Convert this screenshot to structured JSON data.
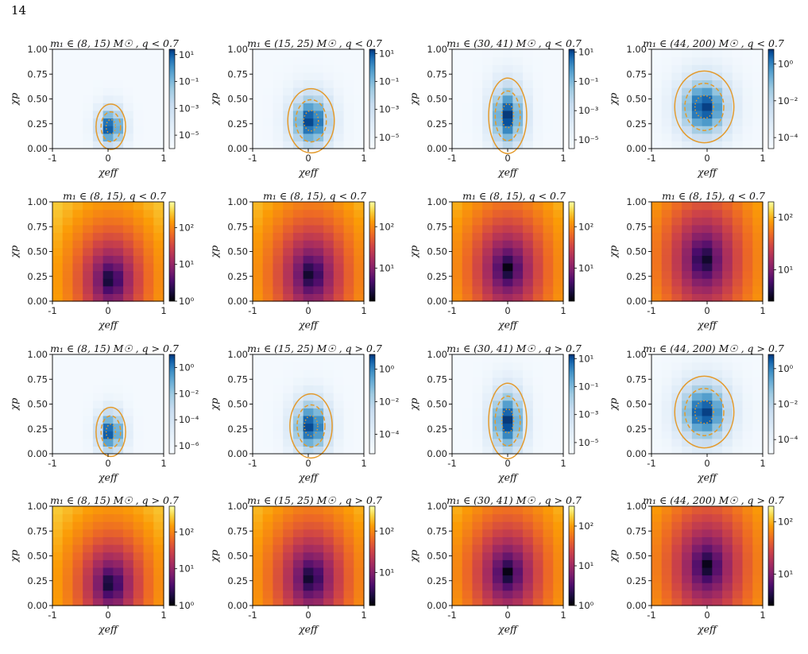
{
  "page": {
    "number": "14"
  },
  "colors": {
    "contour": "#e39a2c",
    "blues_low": "#f7fbff",
    "blues_high": "#08306b",
    "inferno_low": "#000004",
    "inferno_high": "#fcffa4"
  },
  "chart_data": [
    {
      "type": "heatmap",
      "row": 0,
      "col": 0,
      "title": "m₁ ∈ (8, 15) M☉ , q < 0.7",
      "xlabel": "χeff",
      "ylabel": "χp",
      "x_ticks": [
        "-1",
        "0",
        "1"
      ],
      "y_ticks": [
        "0.00",
        "0.25",
        "0.50",
        "0.75",
        "1.00"
      ],
      "xlim": [
        -1,
        1
      ],
      "ylim": [
        0,
        1
      ],
      "colormap": "Blues",
      "color_scale": "log",
      "colorbar_ticks": [
        "10¹",
        "10⁻¹",
        "10⁻³",
        "10⁻⁵"
      ],
      "colorbar_log_range": [
        -6,
        1.4
      ],
      "peak": {
        "x": 0.05,
        "y": 0.22
      },
      "spread": {
        "sx": 0.14,
        "sy": 0.12
      },
      "contours": true
    },
    {
      "type": "heatmap",
      "row": 0,
      "col": 1,
      "title": "m₁ ∈ (15, 25) M☉ , q < 0.7",
      "xlabel": "χeff",
      "ylabel": "χp",
      "x_ticks": [
        "-1",
        "0",
        "1"
      ],
      "y_ticks": [
        "0.00",
        "0.25",
        "0.50",
        "0.75",
        "1.00"
      ],
      "xlim": [
        -1,
        1
      ],
      "ylim": [
        0,
        1
      ],
      "colormap": "Blues",
      "color_scale": "log",
      "colorbar_ticks": [
        "10¹",
        "10⁻¹",
        "10⁻³",
        "10⁻⁵"
      ],
      "colorbar_log_range": [
        -5.8,
        1.3
      ],
      "peak": {
        "x": 0.05,
        "y": 0.28
      },
      "spread": {
        "sx": 0.22,
        "sy": 0.17
      },
      "contours": true
    },
    {
      "type": "heatmap",
      "row": 0,
      "col": 2,
      "title": "m₁ ∈ (30, 41) M☉ , q < 0.7",
      "xlabel": "χeff",
      "ylabel": "χp",
      "x_ticks": [
        "-1",
        "0",
        "1"
      ],
      "y_ticks": [
        "0.00",
        "0.25",
        "0.50",
        "0.75",
        "1.00"
      ],
      "xlim": [
        -1,
        1
      ],
      "ylim": [
        0,
        1
      ],
      "colormap": "Blues",
      "color_scale": "log",
      "colorbar_ticks": [
        "10¹",
        "10⁻¹",
        "10⁻³",
        "10⁻⁵"
      ],
      "colorbar_log_range": [
        -5.6,
        1.2
      ],
      "peak": {
        "x": 0.0,
        "y": 0.33
      },
      "spread": {
        "sx": 0.18,
        "sy": 0.2
      },
      "contours": true
    },
    {
      "type": "heatmap",
      "row": 0,
      "col": 3,
      "title": "m₁ ∈ (44, 200) M☉ , q < 0.7",
      "xlabel": "χeff",
      "ylabel": "χp",
      "x_ticks": [
        "-1",
        "0",
        "1"
      ],
      "y_ticks": [
        "0.00",
        "0.25",
        "0.50",
        "0.75",
        "1.00"
      ],
      "xlim": [
        -1,
        1
      ],
      "ylim": [
        0,
        1
      ],
      "colormap": "Blues",
      "color_scale": "log",
      "colorbar_ticks": [
        "10⁰",
        "10⁻²",
        "10⁻⁴"
      ],
      "colorbar_log_range": [
        -4.6,
        0.8
      ],
      "peak": {
        "x": -0.05,
        "y": 0.42
      },
      "spread": {
        "sx": 0.28,
        "sy": 0.19
      },
      "contours": true
    },
    {
      "type": "heatmap",
      "row": 1,
      "col": 0,
      "title": "m₁ ∈ (8, 15), q < 0.7",
      "xlabel": "χeff",
      "ylabel": "χp",
      "x_ticks": [
        "-1",
        "0",
        "1"
      ],
      "y_ticks": [
        "0.00",
        "0.25",
        "0.50",
        "0.75",
        "1.00"
      ],
      "xlim": [
        -1,
        1
      ],
      "ylim": [
        0,
        1
      ],
      "colormap": "inferno",
      "color_scale": "log",
      "colorbar_ticks": [
        "10²",
        "10¹",
        "10⁰"
      ],
      "colorbar_log_range": [
        0,
        2.7
      ],
      "peak": {
        "x": 0.05,
        "y": 0.22
      },
      "spread": {
        "sx": 0.55,
        "sy": 0.45
      },
      "contours": false
    },
    {
      "type": "heatmap",
      "row": 1,
      "col": 1,
      "title": "m₁ ∈ (8, 15), q < 0.7",
      "xlabel": "χeff",
      "ylabel": "χp",
      "x_ticks": [
        "-1",
        "0",
        "1"
      ],
      "y_ticks": [
        "0.00",
        "0.25",
        "0.50",
        "0.75",
        "1.00"
      ],
      "xlim": [
        -1,
        1
      ],
      "ylim": [
        0,
        1
      ],
      "colormap": "inferno",
      "color_scale": "log",
      "colorbar_ticks": [
        "10²",
        "10¹"
      ],
      "colorbar_log_range": [
        0.2,
        2.6
      ],
      "peak": {
        "x": 0.05,
        "y": 0.27
      },
      "spread": {
        "sx": 0.6,
        "sy": 0.5
      },
      "contours": false
    },
    {
      "type": "heatmap",
      "row": 1,
      "col": 2,
      "title": "m₁ ∈ (8, 15), q < 0.7",
      "xlabel": "χeff",
      "ylabel": "χp",
      "x_ticks": [
        "-1",
        "0",
        "1"
      ],
      "y_ticks": [
        "0.00",
        "0.25",
        "0.50",
        "0.75",
        "1.00"
      ],
      "xlim": [
        -1,
        1
      ],
      "ylim": [
        0,
        1
      ],
      "colormap": "inferno",
      "color_scale": "log",
      "colorbar_ticks": [
        "10²",
        "10¹"
      ],
      "colorbar_log_range": [
        0.2,
        2.6
      ],
      "peak": {
        "x": 0.0,
        "y": 0.33
      },
      "spread": {
        "sx": 0.6,
        "sy": 0.5
      },
      "contours": false
    },
    {
      "type": "heatmap",
      "row": 1,
      "col": 3,
      "title": "m₁ ∈ (8, 15), q < 0.7",
      "xlabel": "χeff",
      "ylabel": "χp",
      "x_ticks": [
        "-1",
        "0",
        "1"
      ],
      "y_ticks": [
        "0.00",
        "0.25",
        "0.50",
        "0.75",
        "1.00"
      ],
      "xlim": [
        -1,
        1
      ],
      "ylim": [
        0,
        1
      ],
      "colormap": "inferno",
      "color_scale": "log",
      "colorbar_ticks": [
        "10²",
        "10¹"
      ],
      "colorbar_log_range": [
        0.4,
        2.3
      ],
      "peak": {
        "x": -0.05,
        "y": 0.42
      },
      "spread": {
        "sx": 0.65,
        "sy": 0.55
      },
      "contours": false
    },
    {
      "type": "heatmap",
      "row": 2,
      "col": 0,
      "title": "m₁ ∈ (8, 15) M☉ , q > 0.7",
      "xlabel": "χeff",
      "ylabel": "χp",
      "x_ticks": [
        "-1",
        "0",
        "1"
      ],
      "y_ticks": [
        "0.00",
        "0.25",
        "0.50",
        "0.75",
        "1.00"
      ],
      "xlim": [
        -1,
        1
      ],
      "ylim": [
        0,
        1
      ],
      "colormap": "Blues",
      "color_scale": "log",
      "colorbar_ticks": [
        "10⁰",
        "10⁻²",
        "10⁻⁴",
        "10⁻⁶"
      ],
      "colorbar_log_range": [
        -6.6,
        1.0
      ],
      "peak": {
        "x": 0.05,
        "y": 0.22
      },
      "spread": {
        "sx": 0.14,
        "sy": 0.13
      },
      "contours": true
    },
    {
      "type": "heatmap",
      "row": 2,
      "col": 1,
      "title": "m₁ ∈ (15, 25) M☉ , q > 0.7",
      "xlabel": "χeff",
      "ylabel": "χp",
      "x_ticks": [
        "-1",
        "0",
        "1"
      ],
      "y_ticks": [
        "0.00",
        "0.25",
        "0.50",
        "0.75",
        "1.00"
      ],
      "xlim": [
        -1,
        1
      ],
      "ylim": [
        0,
        1
      ],
      "colormap": "Blues",
      "color_scale": "log",
      "colorbar_ticks": [
        "10⁰",
        "10⁻²",
        "10⁻⁴"
      ],
      "colorbar_log_range": [
        -5.2,
        0.9
      ],
      "peak": {
        "x": 0.05,
        "y": 0.28
      },
      "spread": {
        "sx": 0.2,
        "sy": 0.17
      },
      "contours": true
    },
    {
      "type": "heatmap",
      "row": 2,
      "col": 2,
      "title": "m₁ ∈ (30, 41) M☉ , q > 0.7",
      "xlabel": "χeff",
      "ylabel": "χp",
      "x_ticks": [
        "-1",
        "0",
        "1"
      ],
      "y_ticks": [
        "0.00",
        "0.25",
        "0.50",
        "0.75",
        "1.00"
      ],
      "xlim": [
        -1,
        1
      ],
      "ylim": [
        0,
        1
      ],
      "colormap": "Blues",
      "color_scale": "log",
      "colorbar_ticks": [
        "10¹",
        "10⁻¹",
        "10⁻³",
        "10⁻⁵"
      ],
      "colorbar_log_range": [
        -5.8,
        1.3
      ],
      "peak": {
        "x": 0.0,
        "y": 0.33
      },
      "spread": {
        "sx": 0.18,
        "sy": 0.2
      },
      "contours": true
    },
    {
      "type": "heatmap",
      "row": 2,
      "col": 3,
      "title": "m₁ ∈ (44, 200) M☉ , q > 0.7",
      "xlabel": "χeff",
      "ylabel": "χp",
      "x_ticks": [
        "-1",
        "0",
        "1"
      ],
      "y_ticks": [
        "0.00",
        "0.25",
        "0.50",
        "0.75",
        "1.00"
      ],
      "xlim": [
        -1,
        1
      ],
      "ylim": [
        0,
        1
      ],
      "colormap": "Blues",
      "color_scale": "log",
      "colorbar_ticks": [
        "10⁰",
        "10⁻²",
        "10⁻⁴"
      ],
      "colorbar_log_range": [
        -4.8,
        0.8
      ],
      "peak": {
        "x": -0.05,
        "y": 0.42
      },
      "spread": {
        "sx": 0.28,
        "sy": 0.19
      },
      "contours": true
    },
    {
      "type": "heatmap",
      "row": 3,
      "col": 0,
      "title": "m₁ ∈ (8, 15) M☉ , q > 0.7",
      "xlabel": "χeff",
      "ylabel": "χp",
      "x_ticks": [
        "-1",
        "0",
        "1"
      ],
      "y_ticks": [
        "0.00",
        "0.25",
        "0.50",
        "0.75",
        "1.00"
      ],
      "xlim": [
        -1,
        1
      ],
      "ylim": [
        0,
        1
      ],
      "colormap": "inferno",
      "color_scale": "log",
      "colorbar_ticks": [
        "10²",
        "10¹",
        "10⁰"
      ],
      "colorbar_log_range": [
        0,
        2.7
      ],
      "peak": {
        "x": 0.05,
        "y": 0.22
      },
      "spread": {
        "sx": 0.55,
        "sy": 0.45
      },
      "contours": false
    },
    {
      "type": "heatmap",
      "row": 3,
      "col": 1,
      "title": "m₁ ∈ (15, 25) M☉ , q > 0.7",
      "xlabel": "χeff",
      "ylabel": "χp",
      "x_ticks": [
        "-1",
        "0",
        "1"
      ],
      "y_ticks": [
        "0.00",
        "0.25",
        "0.50",
        "0.75",
        "1.00"
      ],
      "xlim": [
        -1,
        1
      ],
      "ylim": [
        0,
        1
      ],
      "colormap": "inferno",
      "color_scale": "log",
      "colorbar_ticks": [
        "10²",
        "10¹"
      ],
      "colorbar_log_range": [
        0.2,
        2.6
      ],
      "peak": {
        "x": 0.05,
        "y": 0.28
      },
      "spread": {
        "sx": 0.6,
        "sy": 0.5
      },
      "contours": false
    },
    {
      "type": "heatmap",
      "row": 3,
      "col": 2,
      "title": "m₁ ∈ (30, 41) M☉ , q > 0.7",
      "xlabel": "χeff",
      "ylabel": "χp",
      "x_ticks": [
        "-1",
        "0",
        "1"
      ],
      "y_ticks": [
        "0.00",
        "0.25",
        "0.50",
        "0.75",
        "1.00"
      ],
      "xlim": [
        -1,
        1
      ],
      "ylim": [
        0,
        1
      ],
      "colormap": "inferno",
      "color_scale": "log",
      "colorbar_ticks": [
        "10²",
        "10¹",
        "10⁰"
      ],
      "colorbar_log_range": [
        0,
        2.5
      ],
      "peak": {
        "x": 0.0,
        "y": 0.33
      },
      "spread": {
        "sx": 0.6,
        "sy": 0.5
      },
      "contours": false
    },
    {
      "type": "heatmap",
      "row": 3,
      "col": 3,
      "title": "m₁ ∈ (44, 200) M☉ , q > 0.7",
      "xlabel": "χeff",
      "ylabel": "χp",
      "x_ticks": [
        "-1",
        "0",
        "1"
      ],
      "y_ticks": [
        "0.00",
        "0.25",
        "0.50",
        "0.75",
        "1.00"
      ],
      "xlim": [
        -1,
        1
      ],
      "ylim": [
        0,
        1
      ],
      "colormap": "inferno",
      "color_scale": "log",
      "colorbar_ticks": [
        "10²",
        "10¹"
      ],
      "colorbar_log_range": [
        0.4,
        2.3
      ],
      "peak": {
        "x": 0.0,
        "y": 0.4
      },
      "spread": {
        "sx": 0.65,
        "sy": 0.55
      },
      "contours": false
    }
  ]
}
